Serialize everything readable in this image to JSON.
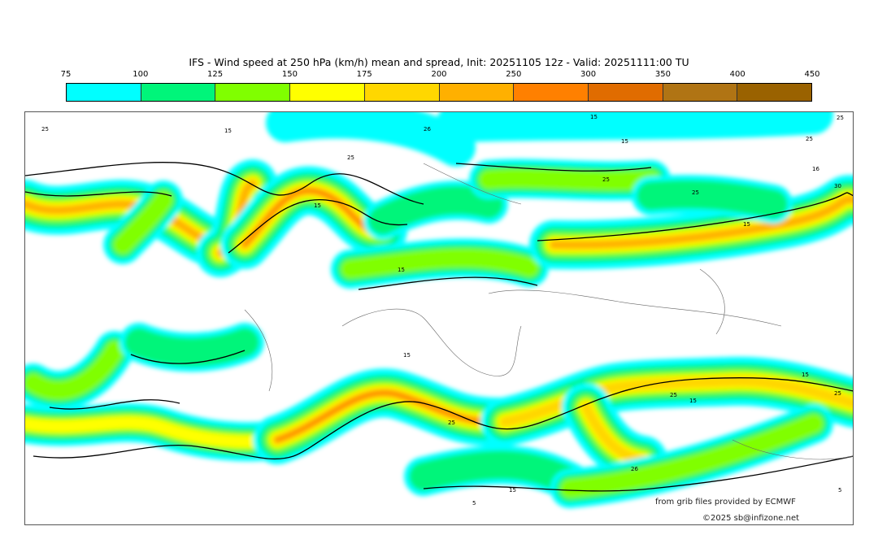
{
  "title": "IFS - Wind speed at 250 hPa (km/h) mean and spread, Init: 20251105 12z - Valid: 20251111:00 TU",
  "colorbar": {
    "ticks": [
      "75",
      "100",
      "125",
      "150",
      "175",
      "200",
      "250",
      "300",
      "350",
      "400",
      "450"
    ],
    "colors": [
      "#00ffff",
      "#00f57a",
      "#80ff00",
      "#ffff00",
      "#ffd700",
      "#ffb000",
      "#ff8000",
      "#e06c00",
      "#b07414",
      "#9a6200"
    ]
  },
  "contour_labels": [
    "25",
    "15",
    "26",
    "15",
    "25",
    "25",
    "25",
    "15",
    "16",
    "25",
    "15",
    "15",
    "15",
    "30",
    "25",
    "15",
    "25",
    "25",
    "15",
    "15",
    "26",
    "25",
    "15",
    "5",
    "5"
  ],
  "credits": {
    "source": "from grib files provided by ECMWF",
    "copyright": "©2025 sb@infizone.net"
  }
}
